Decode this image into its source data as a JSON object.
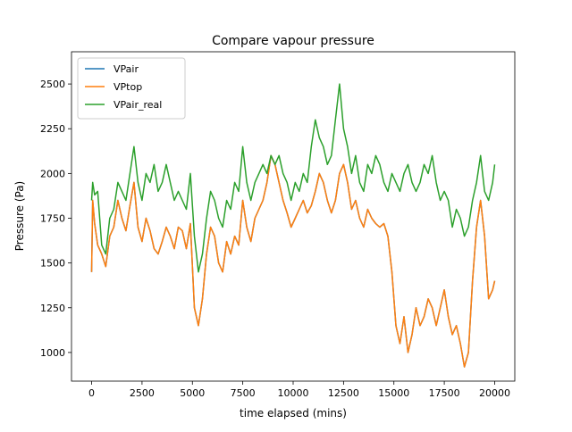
{
  "chart_data": {
    "type": "line",
    "title": "Compare vapour pressure",
    "xlabel": "time elapsed (mins)",
    "ylabel": "Pressure (Pa)",
    "xlim": [
      -1000,
      21000
    ],
    "ylim": [
      840,
      2680
    ],
    "xticks": [
      0,
      2500,
      5000,
      7500,
      10000,
      12500,
      15000,
      17500,
      20000
    ],
    "yticks": [
      1000,
      1250,
      1500,
      1750,
      2000,
      2250,
      2500
    ],
    "grid": false,
    "legend_position": "top-left",
    "series": [
      {
        "name": "VPair",
        "color": "#1f77b4",
        "x": [
          0,
          50,
          150,
          300,
          500,
          700,
          900,
          1100,
          1300,
          1500,
          1700,
          1900,
          2100,
          2300,
          2500,
          2700,
          2900,
          3100,
          3300,
          3500,
          3700,
          3900,
          4100,
          4300,
          4500,
          4700,
          4900,
          5100,
          5300,
          5500,
          5700,
          5900,
          6100,
          6300,
          6500,
          6700,
          6900,
          7100,
          7300,
          7500,
          7700,
          7900,
          8100,
          8300,
          8500,
          8700,
          8900,
          9100,
          9300,
          9500,
          9700,
          9900,
          10100,
          10300,
          10500,
          10700,
          10900,
          11100,
          11300,
          11500,
          11700,
          11900,
          12100,
          12300,
          12500,
          12700,
          12900,
          13100,
          13300,
          13500,
          13700,
          13900,
          14100,
          14300,
          14500,
          14700,
          14900,
          15100,
          15300,
          15500,
          15700,
          15900,
          16100,
          16300,
          16500,
          16700,
          16900,
          17100,
          17300,
          17500,
          17700,
          17900,
          18100,
          18300,
          18500,
          18700,
          18900,
          19100,
          19300,
          19500,
          19700,
          19900,
          20000
        ],
        "values": [
          1450,
          1850,
          1720,
          1600,
          1550,
          1480,
          1650,
          1700,
          1850,
          1750,
          1680,
          1820,
          1950,
          1700,
          1620,
          1750,
          1680,
          1580,
          1550,
          1620,
          1700,
          1650,
          1580,
          1700,
          1680,
          1580,
          1720,
          1250,
          1150,
          1300,
          1550,
          1700,
          1650,
          1500,
          1450,
          1620,
          1550,
          1650,
          1600,
          1850,
          1700,
          1620,
          1750,
          1800,
          1850,
          1950,
          2100,
          2050,
          1950,
          1850,
          1780,
          1700,
          1750,
          1800,
          1850,
          1780,
          1820,
          1900,
          2000,
          1950,
          1850,
          1780,
          1850,
          2000,
          2050,
          1950,
          1800,
          1850,
          1750,
          1700,
          1800,
          1750,
          1720,
          1700,
          1720,
          1650,
          1450,
          1150,
          1050,
          1200,
          1000,
          1100,
          1250,
          1150,
          1200,
          1300,
          1250,
          1150,
          1250,
          1350,
          1200,
          1100,
          1150,
          1050,
          920,
          1000,
          1400,
          1700,
          1850,
          1650,
          1300,
          1350,
          1400
        ]
      },
      {
        "name": "VPtop",
        "color": "#ff7f0e",
        "x": [
          0,
          50,
          150,
          300,
          500,
          700,
          900,
          1100,
          1300,
          1500,
          1700,
          1900,
          2100,
          2300,
          2500,
          2700,
          2900,
          3100,
          3300,
          3500,
          3700,
          3900,
          4100,
          4300,
          4500,
          4700,
          4900,
          5100,
          5300,
          5500,
          5700,
          5900,
          6100,
          6300,
          6500,
          6700,
          6900,
          7100,
          7300,
          7500,
          7700,
          7900,
          8100,
          8300,
          8500,
          8700,
          8900,
          9100,
          9300,
          9500,
          9700,
          9900,
          10100,
          10300,
          10500,
          10700,
          10900,
          11100,
          11300,
          11500,
          11700,
          11900,
          12100,
          12300,
          12500,
          12700,
          12900,
          13100,
          13300,
          13500,
          13700,
          13900,
          14100,
          14300,
          14500,
          14700,
          14900,
          15100,
          15300,
          15500,
          15700,
          15900,
          16100,
          16300,
          16500,
          16700,
          16900,
          17100,
          17300,
          17500,
          17700,
          17900,
          18100,
          18300,
          18500,
          18700,
          18900,
          19100,
          19300,
          19500,
          19700,
          19900,
          20000
        ],
        "values": [
          1450,
          1850,
          1720,
          1600,
          1550,
          1480,
          1650,
          1700,
          1850,
          1750,
          1680,
          1820,
          1950,
          1700,
          1620,
          1750,
          1680,
          1580,
          1550,
          1620,
          1700,
          1650,
          1580,
          1700,
          1680,
          1580,
          1720,
          1250,
          1150,
          1300,
          1550,
          1700,
          1650,
          1500,
          1450,
          1620,
          1550,
          1650,
          1600,
          1850,
          1700,
          1620,
          1750,
          1800,
          1850,
          1950,
          2100,
          2050,
          1950,
          1850,
          1780,
          1700,
          1750,
          1800,
          1850,
          1780,
          1820,
          1900,
          2000,
          1950,
          1850,
          1780,
          1850,
          2000,
          2050,
          1950,
          1800,
          1850,
          1750,
          1700,
          1800,
          1750,
          1720,
          1700,
          1720,
          1650,
          1450,
          1150,
          1050,
          1200,
          1000,
          1100,
          1250,
          1150,
          1200,
          1300,
          1250,
          1150,
          1250,
          1350,
          1200,
          1100,
          1150,
          1050,
          920,
          1000,
          1400,
          1700,
          1850,
          1650,
          1300,
          1350,
          1400
        ]
      },
      {
        "name": "VPair_real",
        "color": "#2ca02c",
        "x": [
          0,
          50,
          150,
          300,
          500,
          700,
          900,
          1100,
          1300,
          1500,
          1700,
          1900,
          2100,
          2300,
          2500,
          2700,
          2900,
          3100,
          3300,
          3500,
          3700,
          3900,
          4100,
          4300,
          4500,
          4700,
          4900,
          5100,
          5300,
          5500,
          5700,
          5900,
          6100,
          6300,
          6500,
          6700,
          6900,
          7100,
          7300,
          7500,
          7700,
          7900,
          8100,
          8300,
          8500,
          8700,
          8900,
          9100,
          9300,
          9500,
          9700,
          9900,
          10100,
          10300,
          10500,
          10700,
          10900,
          11100,
          11300,
          11500,
          11700,
          11900,
          12100,
          12300,
          12500,
          12700,
          12900,
          13100,
          13300,
          13500,
          13700,
          13900,
          14100,
          14300,
          14500,
          14700,
          14900,
          15100,
          15300,
          15500,
          15700,
          15900,
          16100,
          16300,
          16500,
          16700,
          16900,
          17100,
          17300,
          17500,
          17700,
          17900,
          18100,
          18300,
          18500,
          18700,
          18900,
          19100,
          19300,
          19500,
          19700,
          19900,
          20000
        ],
        "values": [
          1850,
          1950,
          1880,
          1900,
          1600,
          1550,
          1750,
          1800,
          1950,
          1900,
          1850,
          2000,
          2150,
          1950,
          1850,
          2000,
          1950,
          2050,
          1900,
          1950,
          2050,
          1950,
          1850,
          1900,
          1850,
          1800,
          2000,
          1650,
          1450,
          1550,
          1750,
          1900,
          1850,
          1750,
          1700,
          1850,
          1800,
          1950,
          1900,
          2150,
          1950,
          1850,
          1950,
          2000,
          2050,
          2000,
          2100,
          2050,
          2100,
          2000,
          1950,
          1850,
          1950,
          1900,
          2000,
          1950,
          2150,
          2300,
          2200,
          2150,
          2050,
          2100,
          2300,
          2500,
          2250,
          2150,
          2000,
          2100,
          1950,
          1900,
          2050,
          2000,
          2100,
          2050,
          1950,
          1900,
          2000,
          1950,
          1900,
          2000,
          2050,
          1950,
          1900,
          1950,
          2050,
          2000,
          2100,
          1950,
          1850,
          1900,
          1850,
          1700,
          1800,
          1750,
          1650,
          1700,
          1850,
          1950,
          2100,
          1900,
          1850,
          1950,
          2050
        ]
      }
    ]
  }
}
